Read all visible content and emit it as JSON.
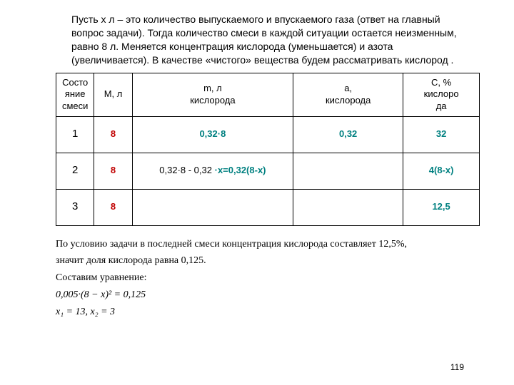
{
  "intro": "Пусть х л – это количество выпускаемого и впускаемого газа (ответ на главный вопрос задачи). Тогда количество смеси в каждой ситуации остается неизменным,  равно 8 л. Меняется концентрация кислорода (уменьшается) и азота (увеличивается). В качестве «чистого» вещества будем рассматривать кислород .",
  "table": {
    "columns": [
      {
        "line1": "Состо",
        "line2": "яние",
        "line3": "смеси"
      },
      {
        "line1": "М, л"
      },
      {
        "line1": "m, л",
        "line2": "кислорода"
      },
      {
        "line1": "а,",
        "line2": "кислорода"
      },
      {
        "line1": "С, %",
        "line2": "кислоро",
        "line3": "да"
      }
    ],
    "rows": [
      {
        "state": "1",
        "M": "8",
        "m": "0,32·8",
        "a": "0,32",
        "C": "32"
      },
      {
        "state": "2",
        "M": "8",
        "m_plain": "0,32·8 - 0,32",
        "m_strong": "·х=0,32(8-х)",
        "a": "",
        "C": "4(8-х)"
      },
      {
        "state": "3",
        "M": "8",
        "m": "",
        "a": "",
        "C": "12,5"
      }
    ],
    "colors": {
      "red": "#c00000",
      "teal": "#008080",
      "black": "#000000"
    }
  },
  "after": {
    "line1": "По условию задачи в последней смеси концентрация кислорода составляет 12,5%,",
    "line2": "значит доля кислорода равна 0,125.",
    "line3": "Составим уравнение:",
    "eq1": "0,005·(8 − x)² = 0,125",
    "eq2": "x₁ = 13, x₂ = 3"
  },
  "pagenum": "119"
}
